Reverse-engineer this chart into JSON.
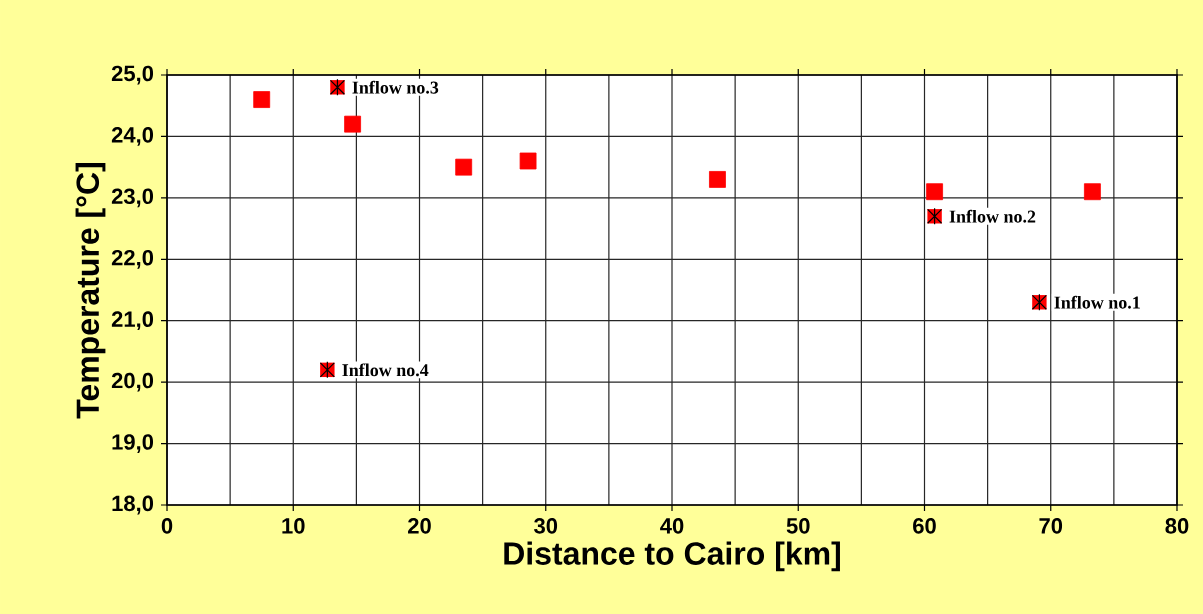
{
  "chart_data": {
    "type": "scatter",
    "xlabel": "Distance to  Cairo [km]",
    "ylabel": "Temperature [°C]",
    "xlim": [
      0,
      80
    ],
    "ylim": [
      18,
      25
    ],
    "xticks": [
      0,
      {
        "value": 5,
        "label": null
      },
      10,
      {
        "value": 15,
        "label": null
      },
      20,
      {
        "value": 25,
        "label": null
      },
      30,
      {
        "value": 35,
        "label": null
      },
      40,
      {
        "value": 45,
        "label": null
      },
      50,
      {
        "value": 55,
        "label": null
      },
      60,
      {
        "value": 65,
        "label": null
      },
      70,
      {
        "value": 75,
        "label": null
      },
      80
    ],
    "yticks": [
      {
        "value": 18,
        "label": "18,0"
      },
      {
        "value": 19,
        "label": "19,0"
      },
      {
        "value": 20,
        "label": "20,0"
      },
      {
        "value": 21,
        "label": "21,0"
      },
      {
        "value": 22,
        "label": "22,0"
      },
      {
        "value": 23,
        "label": "23,0"
      },
      {
        "value": 24,
        "label": "24,0"
      },
      {
        "value": 25,
        "label": "25,0"
      }
    ],
    "grid": true,
    "series": [
      {
        "color": "#ff0000",
        "marker": "square",
        "x": [
          7.5,
          14.7,
          23.5,
          28.6,
          43.6,
          60.8,
          73.3
        ],
        "values": [
          24.6,
          24.2,
          23.5,
          23.6,
          23.3,
          23.1,
          23.1
        ]
      },
      {
        "color": "#ff0000",
        "marker": "square",
        "x": [
          13.5,
          60.8,
          69.1,
          12.7
        ],
        "values": [
          24.8,
          22.7,
          21.3,
          20.2
        ]
      }
    ],
    "annotations": [
      {
        "text": "Inflow no.3",
        "x": 13.5,
        "y": 24.8
      },
      {
        "text": "Inflow no.2",
        "x": 60.8,
        "y": 22.7
      },
      {
        "text": "Inflow no.1",
        "x": 69.1,
        "y": 21.3
      },
      {
        "text": "Inflow no.4",
        "x": 12.7,
        "y": 20.2
      }
    ]
  }
}
